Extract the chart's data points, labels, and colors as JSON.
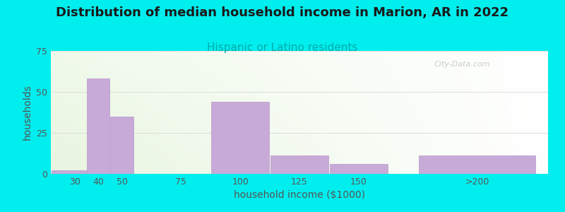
{
  "title": "Distribution of median household income in Marion, AR in 2022",
  "subtitle": "Hispanic or Latino residents",
  "xlabel": "household income ($1000)",
  "ylabel": "households",
  "background_color": "#00EEEE",
  "bar_color": "#c8aad8",
  "bar_edge_color": "#b898c8",
  "values": [
    2,
    58,
    35,
    0,
    44,
    11,
    6,
    11
  ],
  "bar_lefts": [
    20,
    35,
    45,
    55,
    87.5,
    112.5,
    137.5,
    175
  ],
  "bar_widths": [
    15,
    10,
    10,
    20,
    25,
    25,
    25,
    50
  ],
  "ylim": [
    0,
    75
  ],
  "yticks": [
    0,
    25,
    50,
    75
  ],
  "xtick_labels": [
    "30",
    "40",
    "50",
    "75",
    "100",
    "125",
    "150",
    ">200"
  ],
  "xtick_positions": [
    30,
    40,
    50,
    75,
    100,
    125,
    150,
    200
  ],
  "xlim": [
    20,
    230
  ],
  "title_fontsize": 13,
  "subtitle_fontsize": 11,
  "axis_label_fontsize": 10,
  "tick_fontsize": 9,
  "watermark": "City-Data.com",
  "title_color": "#1a1a1a",
  "subtitle_color": "#00AAAA",
  "tick_color": "#555555",
  "label_color": "#555555",
  "grid_color": "#dddddd"
}
